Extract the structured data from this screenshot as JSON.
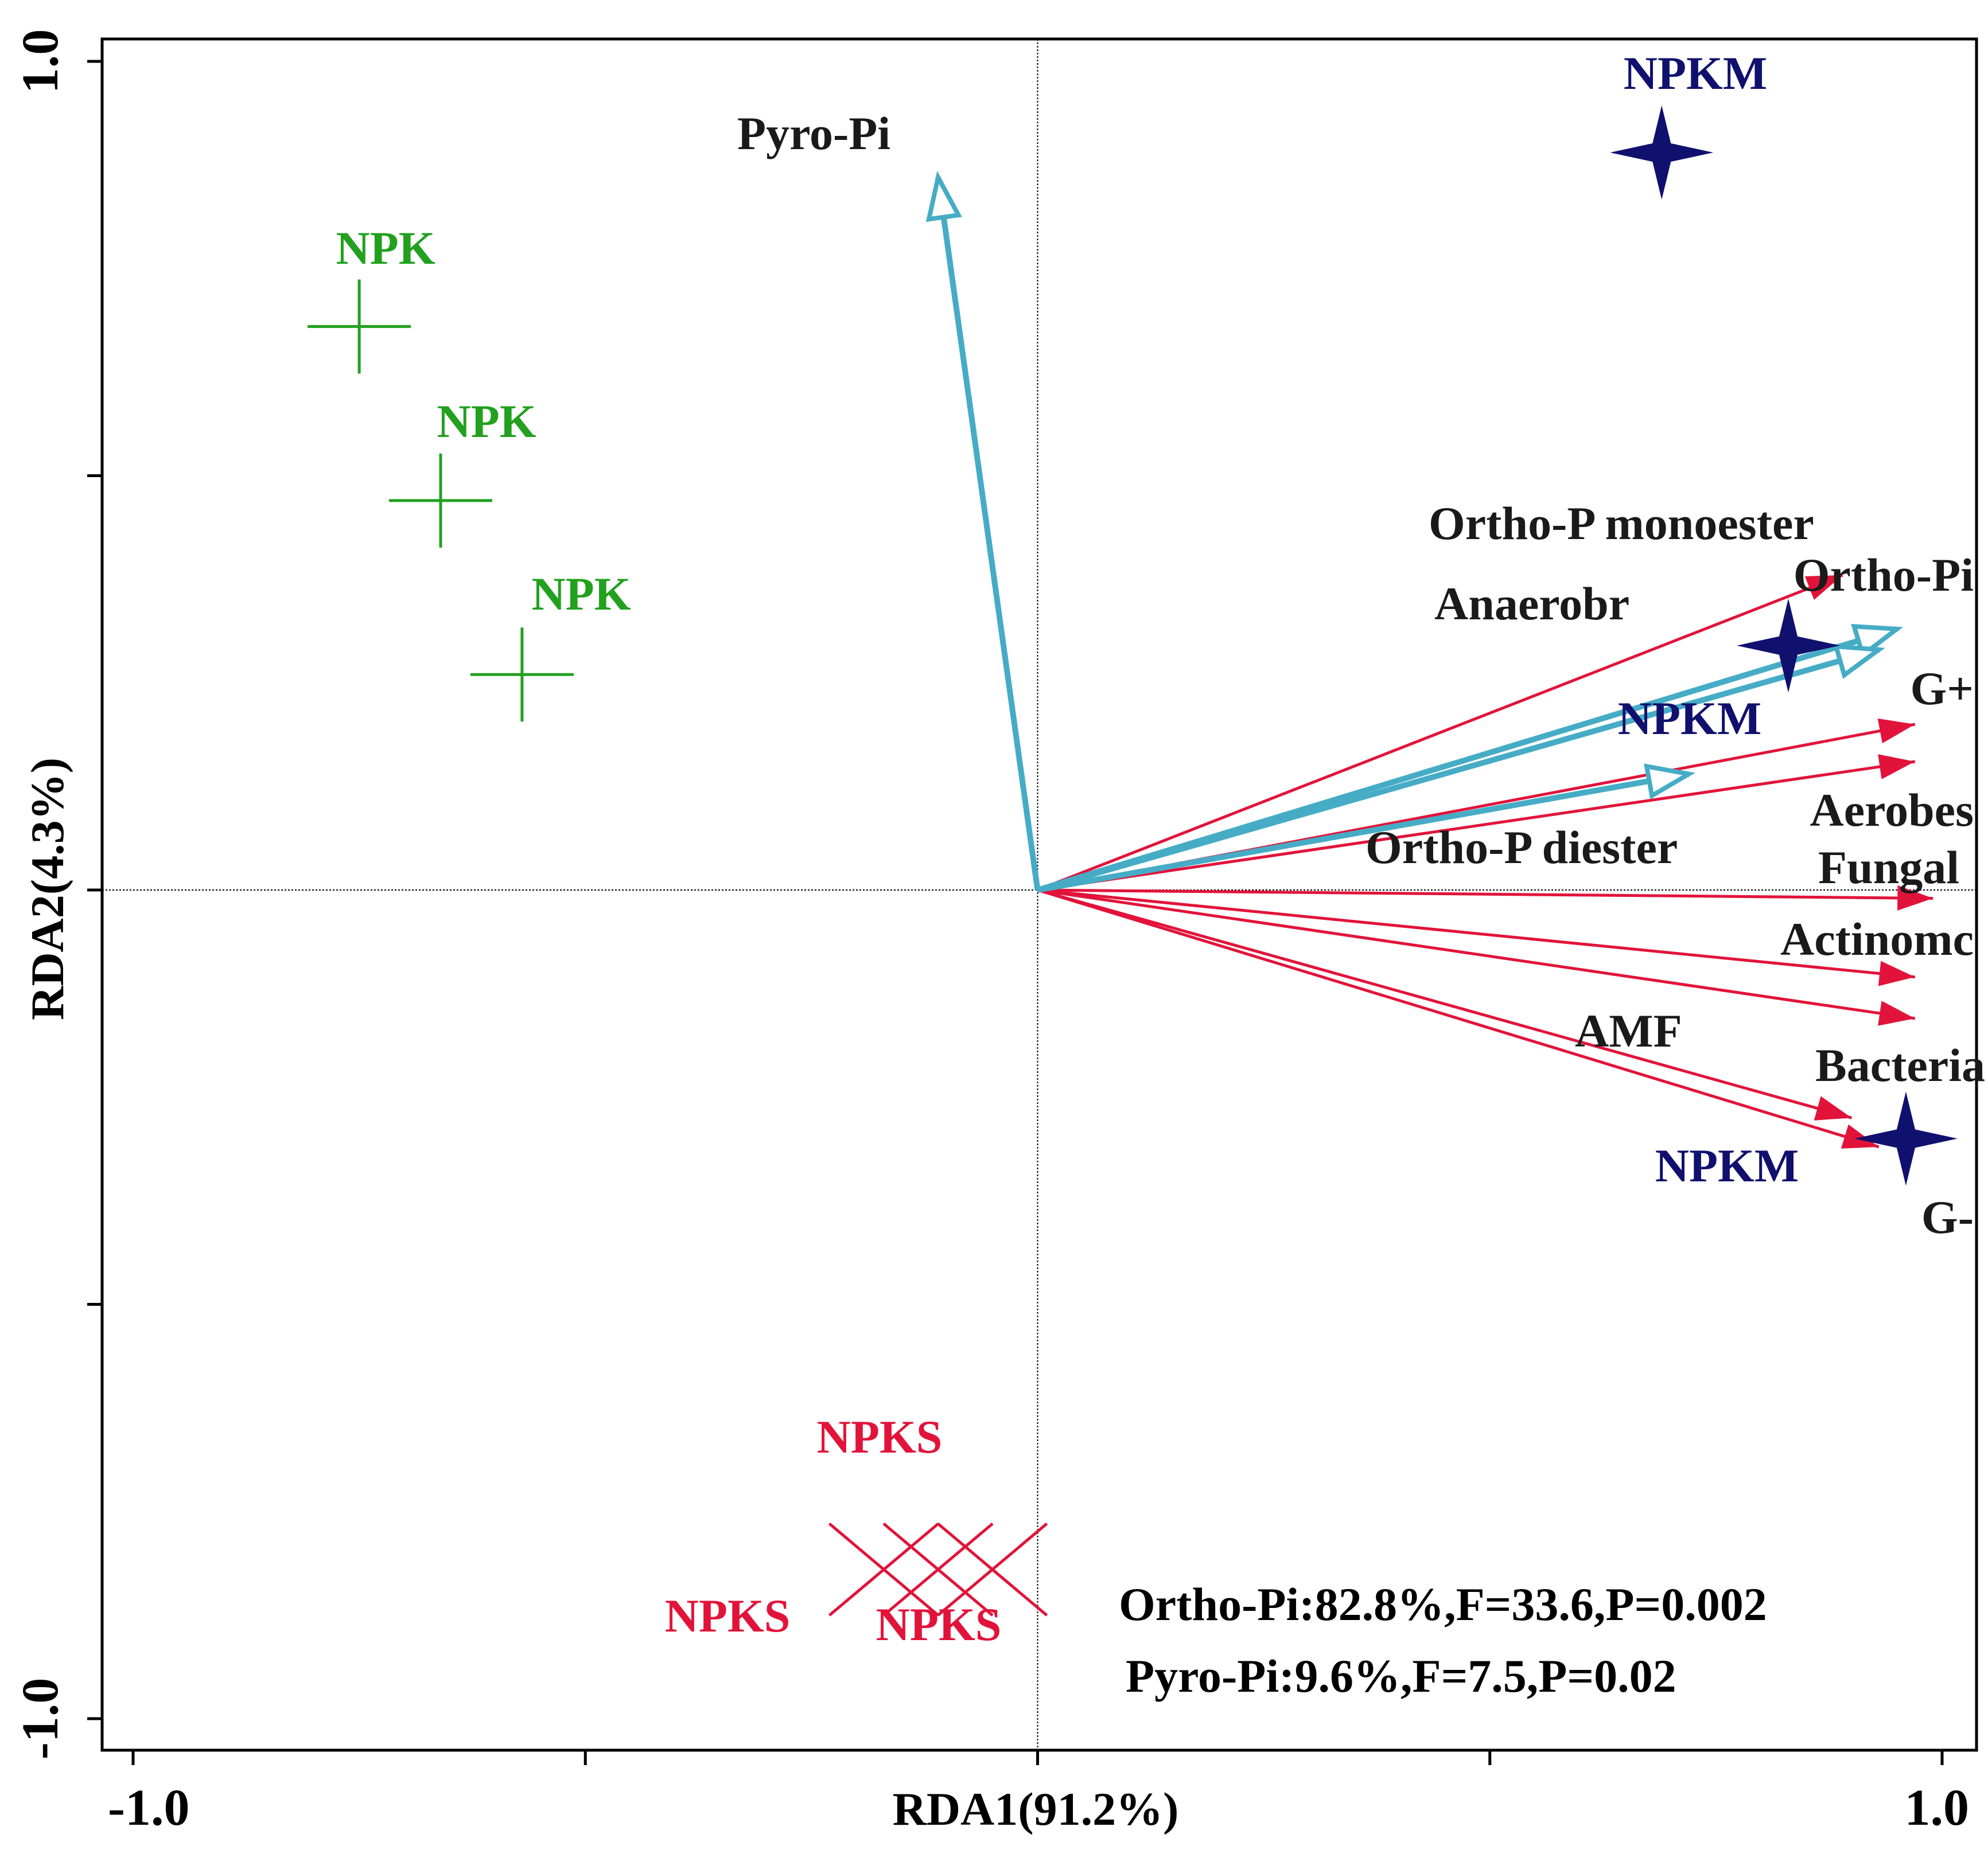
{
  "chart_data": {
    "type": "scatter",
    "title": "",
    "xlabel": "RDA1(91.2%)",
    "ylabel": "RDA2(4.3%)",
    "xlim": [
      -1.0,
      1.0
    ],
    "ylim": [
      -1.0,
      1.0
    ],
    "x_tick_labels": [
      {
        "value": -1.0,
        "label": "-1.0"
      },
      {
        "value": 1.0,
        "label": "1.0"
      }
    ],
    "y_tick_labels": [
      {
        "value": 1.0,
        "label": "1.0"
      },
      {
        "value": -1.0,
        "label": "-1.0"
      }
    ],
    "minor_ticks": [
      -0.5,
      0.0,
      0.5
    ],
    "reference_lines": {
      "x": 0.0,
      "y": 0.0
    },
    "explanatory_vectors": [
      {
        "name": "Pyro-Pi",
        "x": -0.11,
        "y": 0.86
      },
      {
        "name": "Ortho-Pi",
        "x": 0.95,
        "y": 0.315
      },
      {
        "name": "Ortho-P monoester",
        "x": 0.93,
        "y": 0.29
      },
      {
        "name": "Ortho-P diester",
        "x": 0.72,
        "y": 0.14
      }
    ],
    "response_vectors": [
      {
        "name": "Anaerobr",
        "x": 0.89,
        "y": 0.38
      },
      {
        "name": "G+",
        "x": 0.97,
        "y": 0.2
      },
      {
        "name": "Aerobes",
        "x": 0.97,
        "y": 0.155
      },
      {
        "name": "Fungal",
        "x": 0.99,
        "y": -0.01
      },
      {
        "name": "Actinomc",
        "x": 0.97,
        "y": -0.105
      },
      {
        "name": "Bacteria",
        "x": 0.97,
        "y": -0.155
      },
      {
        "name": "AMF",
        "x": 0.9,
        "y": -0.275
      },
      {
        "name": "G-",
        "x": 0.93,
        "y": -0.31
      }
    ],
    "samples": [
      {
        "group": "NPK",
        "x": -0.75,
        "y": 0.68
      },
      {
        "group": "NPK",
        "x": -0.66,
        "y": 0.47
      },
      {
        "group": "NPK",
        "x": -0.57,
        "y": 0.26
      },
      {
        "group": "NPKM",
        "x": 0.69,
        "y": 0.89
      },
      {
        "group": "NPKM",
        "x": 0.83,
        "y": 0.295
      },
      {
        "group": "NPKM",
        "x": 0.96,
        "y": -0.3
      },
      {
        "group": "NPKS",
        "x": -0.17,
        "y": -0.82
      },
      {
        "group": "NPKS",
        "x": -0.11,
        "y": -0.82
      },
      {
        "group": "NPKS",
        "x": -0.05,
        "y": -0.82
      }
    ],
    "group_colors": {
      "NPK": "#22a01e",
      "NPKM": "#10106e",
      "NPKS": "#e2133a"
    },
    "vector_colors": {
      "explanatory": "#46acc6",
      "response": "#e2133a"
    },
    "statistics": [
      "Ortho-Pi:82.8%,F=33.6,P=0.002",
      "Pyro-Pi:9.6%,F=7.5,P=0.02"
    ]
  }
}
